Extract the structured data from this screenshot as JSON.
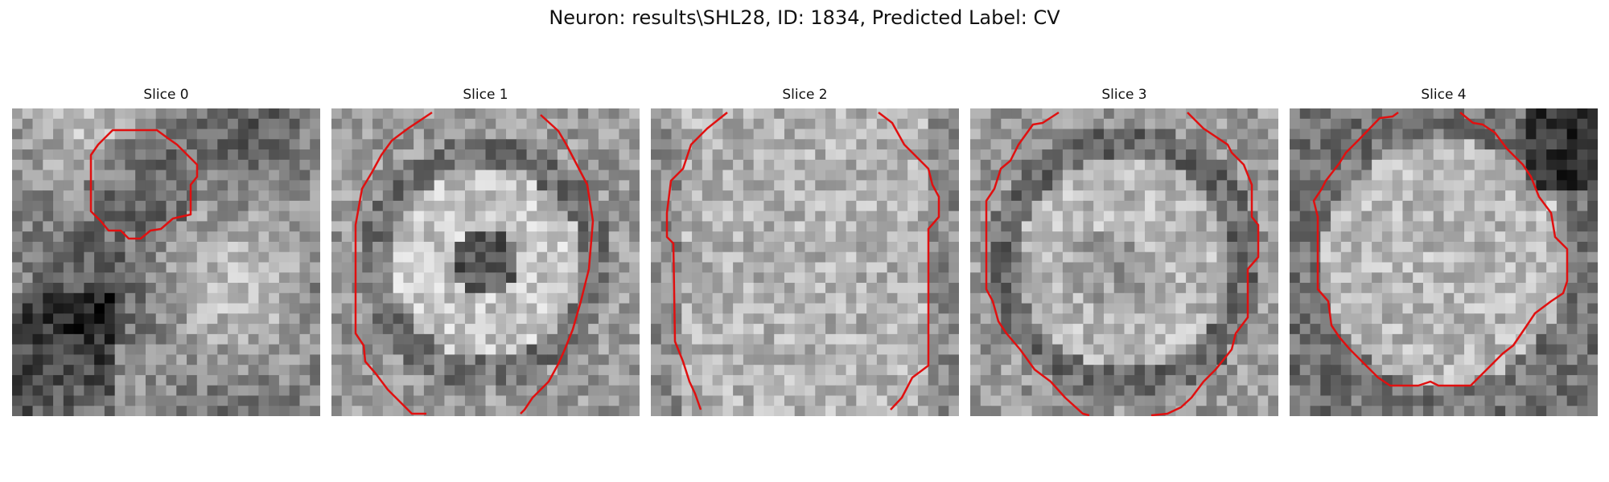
{
  "figure": {
    "title": "Neuron: results\\SHL28, ID: 1834, Predicted Label: CV"
  },
  "panels": [
    {
      "label": "Slice 0",
      "contour_color": "#e01010"
    },
    {
      "label": "Slice 1",
      "contour_color": "#e01010"
    },
    {
      "label": "Slice 2",
      "contour_color": "#e01010"
    },
    {
      "label": "Slice 3",
      "contour_color": "#e01010"
    },
    {
      "label": "Slice 4",
      "contour_color": "#e01010"
    }
  ]
}
